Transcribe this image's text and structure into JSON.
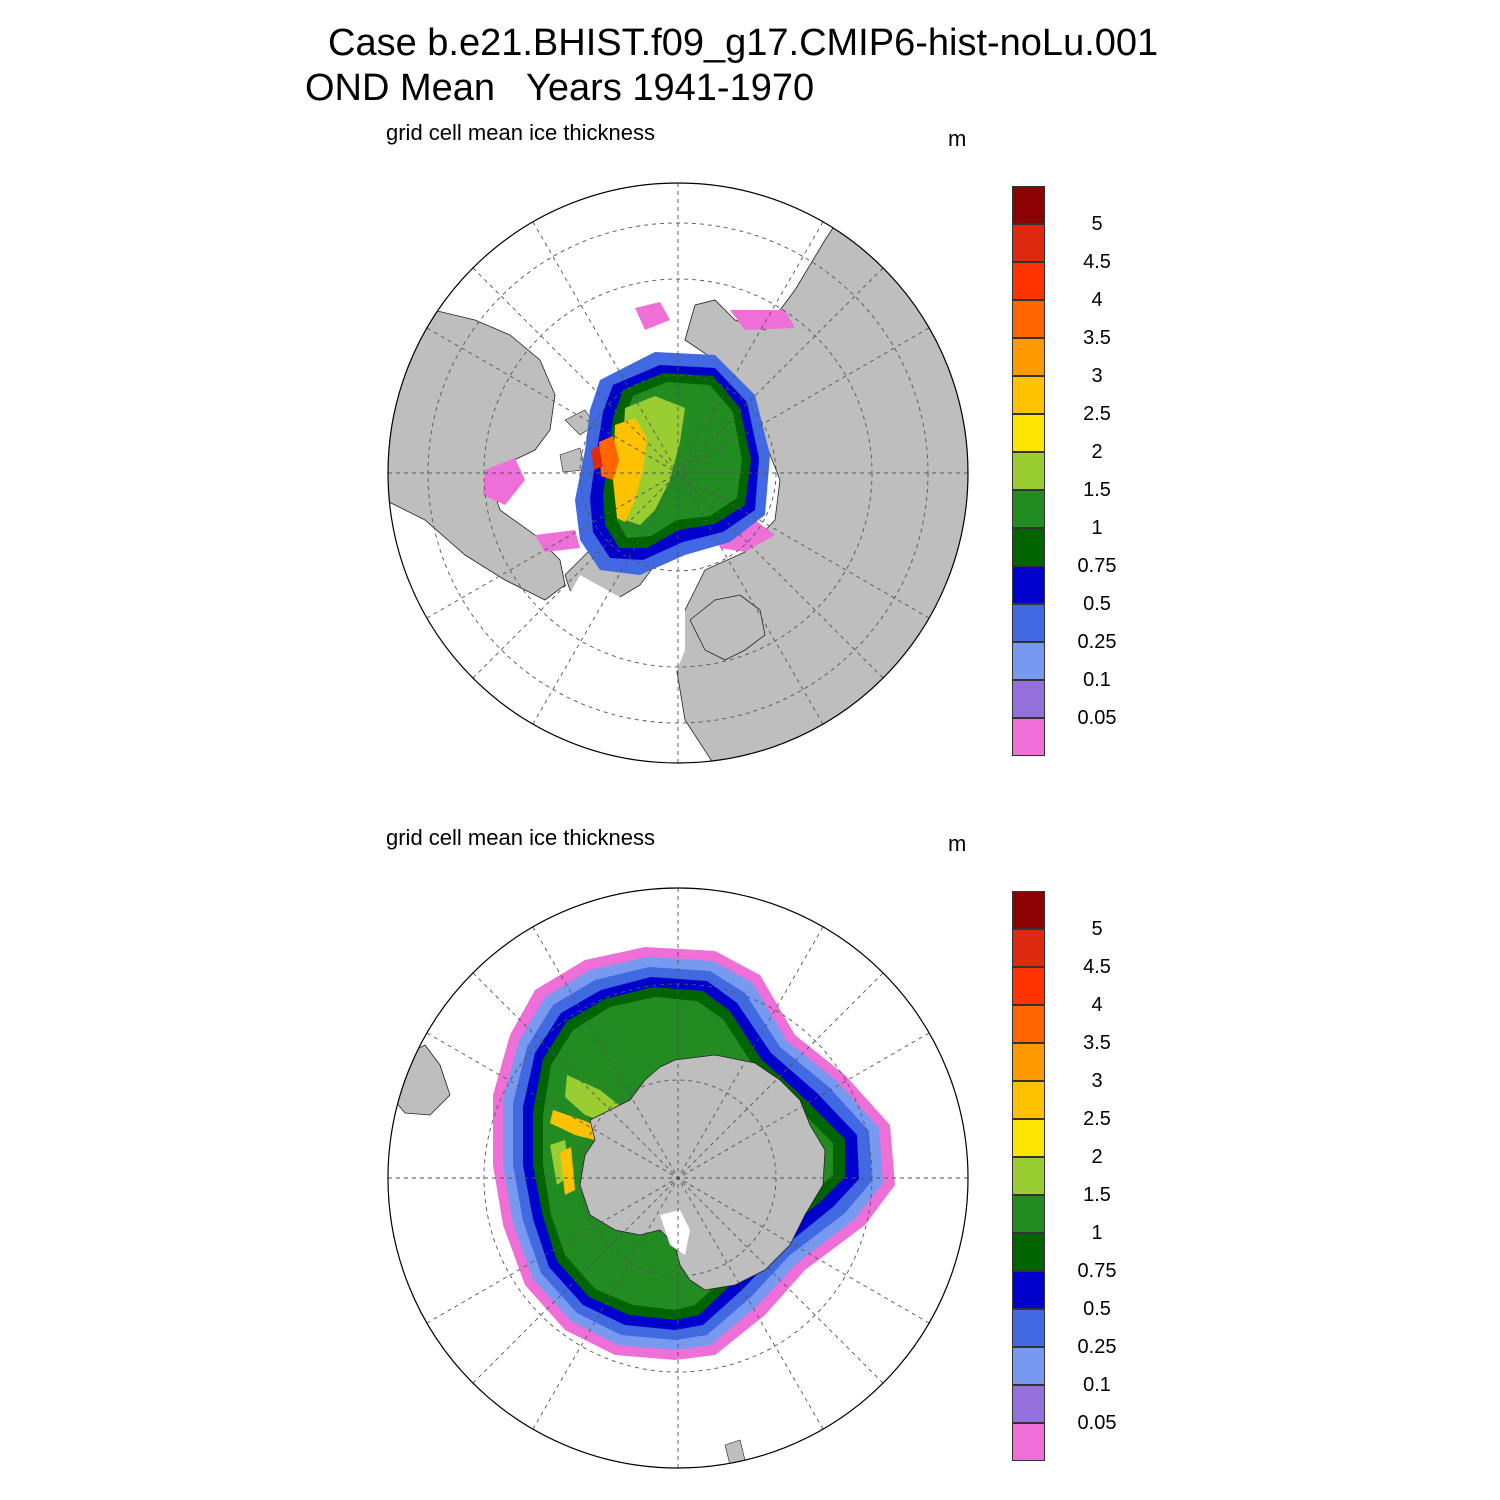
{
  "title": {
    "line1": "Case b.e21.BHIST.f09_g17.CMIP6-hist-noLu.001",
    "line2": "OND Mean   Years 1941-1970"
  },
  "panels": [
    {
      "id": "north",
      "hemisphere": "Northern Hemisphere (Arctic)",
      "label": "grid cell mean ice thickness",
      "units": "m"
    },
    {
      "id": "south",
      "hemisphere": "Southern Hemisphere (Antarctic)",
      "label": "grid cell mean ice thickness",
      "units": "m"
    }
  ],
  "colorbar": {
    "levels_top_to_bottom": [
      "5",
      "4.5",
      "4",
      "3.5",
      "3",
      "2.5",
      "2",
      "1.5",
      "1",
      "0.75",
      "0.5",
      "0.25",
      "0.1",
      "0.05"
    ],
    "colors_top_to_bottom": [
      "#8B0000",
      "#DC2910",
      "#FF3300",
      "#FF6600",
      "#FF9900",
      "#FFC200",
      "#FFE400",
      "#9ACD32",
      "#228B22",
      "#006400",
      "#0000CD",
      "#4169E1",
      "#7799F0",
      "#9370DB",
      "#EE6FD7"
    ]
  },
  "map_colors": {
    "land": "#BEBEBE",
    "ocean": "#FFFFFF",
    "grid": "#555555"
  }
}
